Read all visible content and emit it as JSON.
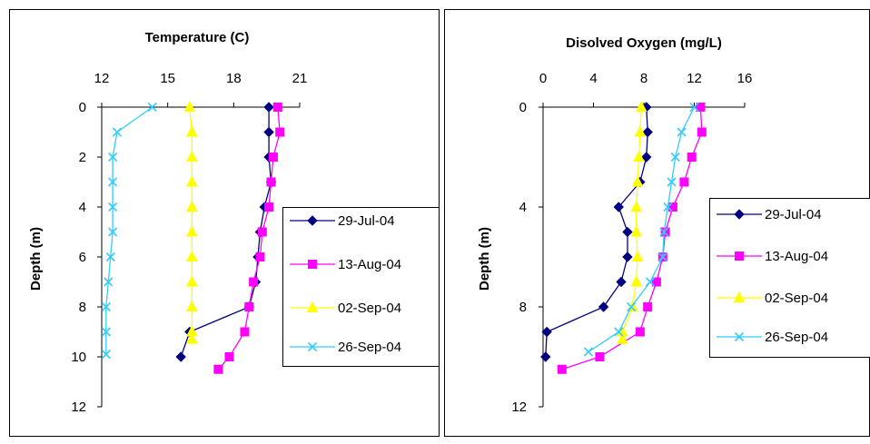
{
  "chart_data": [
    {
      "type": "line",
      "title": "Temperature (C)",
      "xlabel": "",
      "ylabel": "Depth (m)",
      "x_axis_position": "top",
      "y_inverted": true,
      "xlim": [
        12,
        21
      ],
      "ylim": [
        0,
        12
      ],
      "xticks": [
        12,
        15,
        18,
        21
      ],
      "yticks": [
        0,
        2,
        4,
        6,
        8,
        10,
        12
      ],
      "xtick_labels": [
        "12",
        "15",
        "18",
        "21"
      ],
      "ytick_labels": [
        "0",
        "2",
        "4",
        "6",
        "8",
        "10",
        "12"
      ],
      "legend_position": "right",
      "series": [
        {
          "name": "29-Jul-04",
          "color": "#000080",
          "marker": "diamond",
          "x": [
            19.6,
            19.6,
            19.6,
            19.7,
            19.4,
            19.2,
            19.1,
            19.0,
            18.7,
            16.0,
            15.6
          ],
          "y": [
            0,
            1,
            2,
            3,
            4,
            5,
            6,
            7,
            8,
            9,
            10
          ]
        },
        {
          "name": "13-Aug-04",
          "color": "#FF00FF",
          "marker": "square",
          "x": [
            20.0,
            20.1,
            19.8,
            19.7,
            19.6,
            19.3,
            19.2,
            18.9,
            18.7,
            18.5,
            17.8,
            17.3
          ],
          "y": [
            0,
            1,
            2,
            3,
            4,
            5,
            6,
            7,
            8,
            9,
            10,
            10.5
          ]
        },
        {
          "name": "02-Sep-04",
          "color": "#FFFF00",
          "marker": "triangle",
          "x": [
            16.0,
            16.1,
            16.1,
            16.1,
            16.1,
            16.1,
            16.1,
            16.1,
            16.1,
            16.1,
            16.1
          ],
          "y": [
            0,
            1,
            2,
            3,
            4,
            5,
            6,
            7,
            8,
            9,
            9.3
          ]
        },
        {
          "name": "26-Sep-04",
          "color": "#33CCFF",
          "marker": "x",
          "x": [
            14.3,
            12.7,
            12.5,
            12.5,
            12.5,
            12.5,
            12.4,
            12.3,
            12.2,
            12.2,
            12.2
          ],
          "y": [
            0,
            1,
            2,
            3,
            4,
            5,
            6,
            7,
            8,
            9,
            9.9
          ]
        }
      ]
    },
    {
      "type": "line",
      "title": "Disolved Oxygen (mg/L)",
      "xlabel": "",
      "ylabel": "Depth (m)",
      "x_axis_position": "top",
      "y_inverted": true,
      "xlim": [
        0,
        16
      ],
      "ylim": [
        0,
        12
      ],
      "xticks": [
        0,
        4,
        8,
        12,
        16
      ],
      "yticks": [
        0,
        4,
        8,
        12
      ],
      "xtick_labels": [
        "0",
        "4",
        "8",
        "12",
        "16"
      ],
      "ytick_labels": [
        "0",
        "4",
        "8",
        "12"
      ],
      "legend_position": "right",
      "series": [
        {
          "name": "29-Jul-04",
          "color": "#000080",
          "marker": "diamond",
          "x": [
            8.2,
            8.3,
            8.2,
            7.7,
            6.0,
            6.7,
            6.7,
            6.2,
            4.8,
            0.3,
            0.2
          ],
          "y": [
            0,
            1,
            2,
            3,
            4,
            5,
            6,
            7,
            8,
            9,
            10
          ]
        },
        {
          "name": "13-Aug-04",
          "color": "#FF00FF",
          "marker": "square",
          "x": [
            12.5,
            12.6,
            11.8,
            11.2,
            10.3,
            9.7,
            9.5,
            9.0,
            8.3,
            7.7,
            4.5,
            1.5
          ],
          "y": [
            0,
            1,
            2,
            3,
            4,
            5,
            6,
            7,
            8,
            9,
            10,
            10.5
          ]
        },
        {
          "name": "02-Sep-04",
          "color": "#FFFF00",
          "marker": "triangle",
          "x": [
            7.8,
            7.7,
            7.6,
            7.5,
            7.4,
            7.4,
            7.5,
            7.4,
            7.1,
            6.3,
            6.3
          ],
          "y": [
            0,
            1,
            2,
            3,
            4,
            5,
            6,
            7,
            8,
            9,
            9.3
          ]
        },
        {
          "name": "26-Sep-04",
          "color": "#33CCFF",
          "marker": "x",
          "x": [
            12.0,
            11.0,
            10.5,
            10.2,
            9.9,
            9.6,
            9.5,
            8.5,
            7.0,
            6.0,
            3.6
          ],
          "y": [
            0,
            1,
            2,
            3,
            4,
            5,
            6,
            7,
            8,
            9,
            9.8
          ]
        }
      ]
    }
  ]
}
